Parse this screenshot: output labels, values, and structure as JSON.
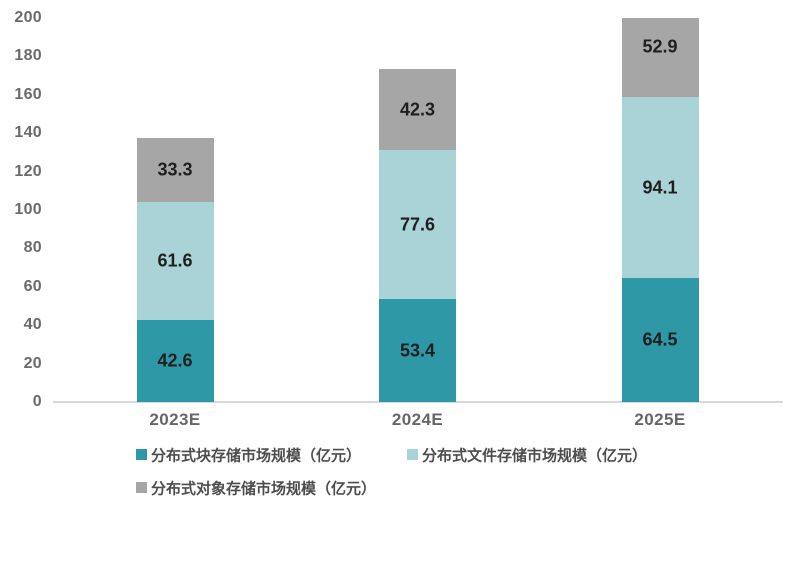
{
  "chart_data": {
    "type": "bar",
    "stacked": true,
    "title": "",
    "categories": [
      "2023E",
      "2024E",
      "2025E"
    ],
    "series": [
      {
        "name": "分布式块存储市场规模（亿元）",
        "values": [
          42.6,
          53.4,
          64.5
        ],
        "color": "#2E98A6"
      },
      {
        "name": "分布式文件存储市场规模（亿元）",
        "values": [
          61.6,
          77.6,
          94.1
        ],
        "color": "#A9D3D6"
      },
      {
        "name": "分布式对象存储市场规模（亿元）",
        "values": [
          33.3,
          42.3,
          52.9
        ],
        "color": "#A6A6A6"
      }
    ],
    "value_labels": [
      [
        "42.6",
        "53.4",
        "64.5"
      ],
      [
        "61.6",
        "77.6",
        "94.1"
      ],
      [
        "33.3",
        "42.3",
        "52.9"
      ]
    ],
    "xlabel": "",
    "ylabel": "",
    "ylim": [
      0,
      200
    ],
    "yticks": [
      0,
      20,
      40,
      60,
      80,
      100,
      120,
      140,
      160,
      180,
      200
    ],
    "grid": false,
    "legend_position": "bottom-left",
    "bars_clipped_at_ymax": true,
    "colors": {
      "axis_line": "#D9D9D9",
      "axis_tick_label": "#6A6A6A",
      "category_label": "#666666",
      "value_label": "#1F1F1F",
      "legend_text": "#4D4D4D",
      "background": "#FFFFFF"
    }
  }
}
